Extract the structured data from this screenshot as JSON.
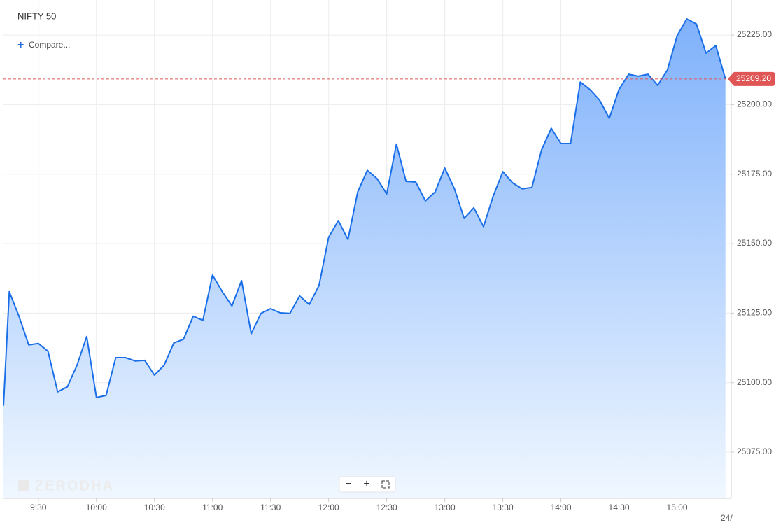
{
  "chart_data": {
    "type": "area",
    "title": "NIFTY 50",
    "compare_label": "Compare...",
    "watermark": "ZERODHA",
    "date_label": "24/",
    "color": "#1a6fe8",
    "x": [
      552,
      555,
      560,
      565,
      570,
      575,
      580,
      585,
      590,
      595,
      600,
      605,
      610,
      615,
      620,
      625,
      630,
      635,
      640,
      645,
      650,
      655,
      660,
      665,
      670,
      675,
      680,
      685,
      690,
      695,
      700,
      705,
      710,
      715,
      720,
      725,
      730,
      735,
      740,
      745,
      750,
      755,
      760,
      765,
      770,
      775,
      780,
      785,
      790,
      795,
      800,
      805,
      810,
      815,
      820,
      825,
      830,
      835,
      840,
      845,
      850,
      855,
      860,
      865,
      870,
      875,
      880,
      885,
      890,
      895,
      900,
      905,
      910,
      915,
      920,
      925
    ],
    "values": [
      25091.7,
      25132.7,
      25123.9,
      25113.6,
      25114.1,
      25111.3,
      25096.7,
      25098.5,
      25106.3,
      25116.6,
      25094.7,
      25095.4,
      25109.0,
      25109.0,
      25107.8,
      25108.0,
      25102.7,
      25106.3,
      25114.3,
      25115.6,
      25123.9,
      25122.4,
      25138.7,
      25132.7,
      25127.6,
      25136.7,
      25117.6,
      25124.9,
      25126.6,
      25125.1,
      25124.9,
      25131.2,
      25128.1,
      25134.9,
      25152.3,
      25158.3,
      25151.5,
      25168.6,
      25176.4,
      25173.4,
      25167.9,
      25185.8,
      25172.4,
      25172.2,
      25165.4,
      25168.6,
      25177.2,
      25169.7,
      25159.1,
      25162.9,
      25156.1,
      25167.1,
      25175.9,
      25171.9,
      25169.7,
      25170.2,
      25183.7,
      25191.5,
      25186.0,
      25186.0,
      25208.1,
      25205.4,
      25201.6,
      25195.1,
      25205.4,
      25210.9,
      25210.2,
      25210.9,
      25206.9,
      25212.4,
      25224.7,
      25230.8,
      25229.0,
      25218.5,
      25221.2,
      25209.2
    ],
    "last_price": {
      "value": 25209.2,
      "label": "25209.20"
    },
    "xlim": [
      552,
      928
    ],
    "xticks": [
      {
        "value": 570,
        "label": "9:30"
      },
      {
        "value": 600,
        "label": "10:00"
      },
      {
        "value": 630,
        "label": "10:30"
      },
      {
        "value": 660,
        "label": "11:00"
      },
      {
        "value": 690,
        "label": "11:30"
      },
      {
        "value": 720,
        "label": "12:00"
      },
      {
        "value": 750,
        "label": "12:30"
      },
      {
        "value": 780,
        "label": "13:00"
      },
      {
        "value": 810,
        "label": "13:30"
      },
      {
        "value": 840,
        "label": "14:00"
      },
      {
        "value": 870,
        "label": "14:30"
      },
      {
        "value": 900,
        "label": "15:00"
      }
    ],
    "ylim": [
      25058.4,
      25237.1
    ],
    "yticks": [
      {
        "value": 25075,
        "label": "25075.00"
      },
      {
        "value": 25100,
        "label": "25100.00"
      },
      {
        "value": 25125,
        "label": "25125.00"
      },
      {
        "value": 25150,
        "label": "25150.00"
      },
      {
        "value": 25175,
        "label": "25175.00"
      },
      {
        "value": 25200,
        "label": "25200.00"
      },
      {
        "value": 25225,
        "label": "25225.00"
      }
    ],
    "grid": true
  }
}
